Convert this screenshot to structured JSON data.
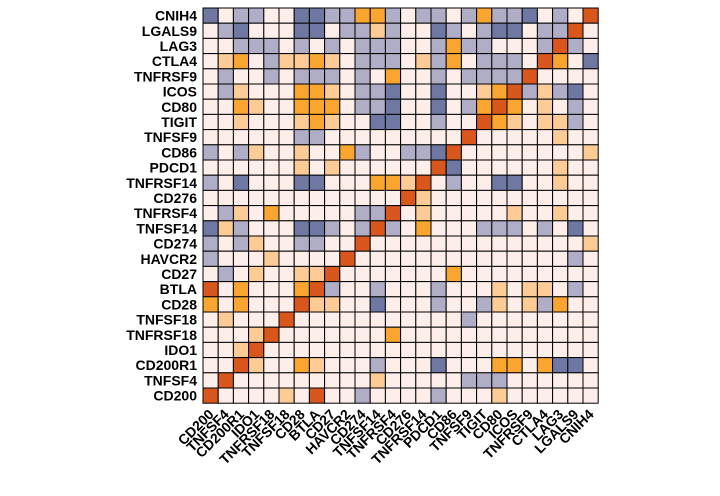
{
  "chart_data": {
    "type": "heatmap",
    "row_labels": [
      "CNIH4",
      "LGALS9",
      "LAG3",
      "CTLA4",
      "TNFRSF9",
      "ICOS",
      "CD80",
      "TIGIT",
      "TNFSF9",
      "CD86",
      "PDCD1",
      "TNFRSF14",
      "CD276",
      "TNFRSF4",
      "TNFSF14",
      "CD274",
      "HAVCR2",
      "CD27",
      "BTLA",
      "CD28",
      "TNFSF18",
      "TNFRSF18",
      "IDO1",
      "CD200R1",
      "TNFSF4",
      "CD200"
    ],
    "col_labels": [
      "CD200",
      "TNFSF4",
      "CD200R1",
      "IDO1",
      "TNFRSF18",
      "TNFSF18",
      "CD28",
      "BTLA",
      "CD27",
      "HAVCR2",
      "CD274",
      "TNFSF14",
      "TNFRSF4",
      "CD276",
      "TNFRSF14",
      "PDCD1",
      "CD86",
      "TNFSF9",
      "TIGIT",
      "CD80",
      "ICOS",
      "TNFRSF9",
      "CTLA4",
      "LAG3",
      "LGALS9",
      "CNIH4"
    ],
    "value_levels": {
      "-2": "#6f77a3",
      "-1": "#b0adc6",
      "0": "#fdeeea",
      "1": "#fccb96",
      "2": "#f9a530",
      "3": "#d9561c"
    },
    "matrix": [
      [
        -2,
        0,
        -1,
        -1,
        0,
        0,
        -2,
        -2,
        -1,
        -1,
        2,
        2,
        -1,
        0,
        -1,
        -1,
        0,
        -1,
        2,
        -1,
        -1,
        -2,
        0,
        -1,
        0,
        3
      ],
      [
        0,
        -1,
        -2,
        0,
        0,
        0,
        -2,
        -2,
        0,
        -1,
        -1,
        1,
        -1,
        0,
        0,
        -2,
        -1,
        0,
        -1,
        -2,
        -2,
        0,
        -1,
        -1,
        3,
        0
      ],
      [
        0,
        0,
        -1,
        -1,
        -1,
        0,
        -1,
        0,
        -1,
        0,
        -1,
        -1,
        -1,
        0,
        0,
        -1,
        2,
        -1,
        -1,
        0,
        0,
        0,
        -1,
        3,
        -1,
        0
      ],
      [
        0,
        1,
        2,
        0,
        -1,
        1,
        1,
        2,
        1,
        0,
        -1,
        -1,
        -1,
        0,
        1,
        -1,
        2,
        0,
        -1,
        -1,
        -1,
        0,
        3,
        2,
        0,
        -2
      ],
      [
        0,
        -1,
        0,
        0,
        -1,
        0,
        -1,
        -1,
        -1,
        0,
        -1,
        0,
        2,
        0,
        0,
        -1,
        0,
        -1,
        -1,
        -1,
        -1,
        3,
        0,
        0,
        0,
        0
      ],
      [
        0,
        -1,
        1,
        0,
        0,
        0,
        2,
        2,
        1,
        0,
        -1,
        -1,
        -2,
        0,
        0,
        -2,
        0,
        0,
        1,
        2,
        3,
        -1,
        1,
        -1,
        -2,
        0
      ],
      [
        0,
        0,
        2,
        1,
        0,
        0,
        2,
        2,
        2,
        0,
        -1,
        -1,
        -2,
        0,
        0,
        -2,
        0,
        -1,
        2,
        3,
        2,
        0,
        1,
        0,
        -1,
        0
      ],
      [
        0,
        0,
        1,
        0,
        0,
        0,
        1,
        2,
        1,
        0,
        0,
        -2,
        -2,
        0,
        0,
        -1,
        0,
        0,
        3,
        2,
        1,
        0,
        1,
        1,
        -1,
        0
      ],
      [
        0,
        0,
        0,
        0,
        0,
        0,
        -1,
        -1,
        0,
        0,
        0,
        0,
        0,
        0,
        0,
        0,
        0,
        3,
        0,
        0,
        0,
        0,
        0,
        1,
        0,
        0
      ],
      [
        -1,
        0,
        -1,
        1,
        0,
        0,
        1,
        0,
        0,
        2,
        -1,
        0,
        0,
        -1,
        -1,
        -2,
        3,
        0,
        0,
        0,
        0,
        0,
        0,
        0,
        0,
        1
      ],
      [
        0,
        0,
        0,
        0,
        0,
        0,
        1,
        0,
        1,
        0,
        0,
        0,
        0,
        0,
        0,
        3,
        -2,
        0,
        0,
        0,
        0,
        0,
        0,
        1,
        0,
        0
      ],
      [
        -1,
        0,
        -2,
        0,
        0,
        0,
        -2,
        -2,
        0,
        0,
        0,
        2,
        2,
        1,
        3,
        0,
        -1,
        0,
        0,
        -2,
        -2,
        0,
        0,
        1,
        0,
        0
      ],
      [
        0,
        0,
        0,
        0,
        0,
        0,
        0,
        0,
        0,
        0,
        0,
        0,
        0,
        3,
        1,
        0,
        0,
        0,
        0,
        0,
        0,
        0,
        0,
        0,
        0,
        0
      ],
      [
        0,
        -1,
        1,
        0,
        2,
        0,
        0,
        0,
        0,
        0,
        -1,
        -1,
        3,
        0,
        1,
        0,
        0,
        0,
        0,
        0,
        1,
        0,
        0,
        1,
        0,
        0
      ],
      [
        -2,
        1,
        -1,
        0,
        0,
        0,
        -2,
        -2,
        -1,
        0,
        -1,
        3,
        -1,
        0,
        2,
        0,
        0,
        0,
        -1,
        -1,
        -1,
        0,
        -1,
        0,
        -2,
        0
      ],
      [
        -1,
        0,
        -1,
        1,
        0,
        0,
        -1,
        -1,
        0,
        0,
        3,
        0,
        0,
        0,
        0,
        0,
        0,
        0,
        0,
        0,
        0,
        0,
        0,
        0,
        0,
        1
      ],
      [
        -1,
        0,
        0,
        0,
        1,
        0,
        0,
        0,
        0,
        3,
        0,
        0,
        0,
        0,
        0,
        0,
        0,
        0,
        0,
        0,
        0,
        0,
        0,
        0,
        -1,
        0
      ],
      [
        0,
        -1,
        0,
        1,
        0,
        0,
        1,
        1,
        3,
        0,
        0,
        0,
        0,
        0,
        0,
        0,
        2,
        0,
        0,
        0,
        0,
        0,
        0,
        0,
        0,
        0
      ],
      [
        3,
        0,
        2,
        0,
        0,
        0,
        2,
        3,
        -1,
        0,
        0,
        -1,
        0,
        0,
        0,
        -1,
        0,
        0,
        0,
        1,
        0,
        1,
        1,
        0,
        -1,
        0
      ],
      [
        2,
        0,
        2,
        0,
        0,
        0,
        3,
        1,
        1,
        0,
        0,
        -2,
        0,
        0,
        0,
        -1,
        0,
        0,
        -1,
        1,
        0,
        1,
        -1,
        2,
        0,
        0
      ],
      [
        0,
        1,
        0,
        0,
        0,
        3,
        0,
        0,
        0,
        0,
        0,
        0,
        0,
        0,
        0,
        0,
        0,
        -1,
        0,
        0,
        0,
        0,
        0,
        0,
        0,
        0
      ],
      [
        0,
        0,
        0,
        1,
        3,
        0,
        0,
        0,
        0,
        0,
        0,
        0,
        2,
        0,
        0,
        0,
        0,
        0,
        0,
        0,
        0,
        0,
        0,
        0,
        0,
        0
      ],
      [
        0,
        0,
        1,
        3,
        0,
        0,
        0,
        0,
        0,
        0,
        0,
        0,
        0,
        0,
        0,
        0,
        0,
        0,
        0,
        0,
        0,
        0,
        0,
        0,
        0,
        0
      ],
      [
        0,
        0,
        3,
        1,
        0,
        0,
        2,
        1,
        0,
        0,
        0,
        -1,
        0,
        0,
        0,
        -2,
        0,
        0,
        0,
        2,
        2,
        0,
        2,
        -2,
        -2,
        0
      ],
      [
        0,
        3,
        0,
        0,
        0,
        0,
        0,
        0,
        0,
        0,
        0,
        1,
        0,
        0,
        0,
        0,
        0,
        -1,
        -1,
        -1,
        0,
        0,
        0,
        0,
        0,
        0
      ],
      [
        3,
        0,
        0,
        0,
        0,
        1,
        0,
        3,
        0,
        0,
        -1,
        0,
        0,
        0,
        0,
        -1,
        0,
        0,
        0,
        1,
        0,
        0,
        0,
        0,
        0,
        0
      ]
    ]
  }
}
